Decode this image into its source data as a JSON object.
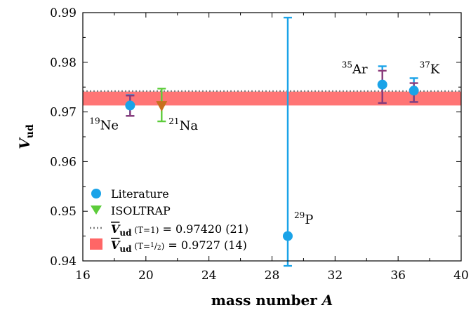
{
  "chart_data": {
    "type": "scatter",
    "xlabel": {
      "main": "mass number",
      "var": "A"
    },
    "ylabel": {
      "main": "V",
      "sub": "ud"
    },
    "xlim": [
      16,
      40
    ],
    "ylim": [
      0.94,
      0.99
    ],
    "xticks": [
      16,
      20,
      24,
      28,
      32,
      36,
      40
    ],
    "yticks": [
      0.94,
      0.95,
      0.96,
      0.97,
      0.98,
      0.99
    ],
    "xtick_labels": [
      "16",
      "20",
      "24",
      "28",
      "32",
      "36",
      "40"
    ],
    "ytick_labels": [
      "0.94",
      "0.95",
      "0.96",
      "0.97",
      "0.98",
      "0.99"
    ],
    "grid": false,
    "legend_position": "bottom-left",
    "colors": {
      "literature": "#1aa3e8",
      "isoltrap": "#5ccc3a",
      "mean_t1": "#7f7f7f",
      "band": "#ff6666",
      "purple_error": "#8b3a7a",
      "orange_marker": "#c8701e"
    },
    "series": [
      {
        "name": "Literature",
        "marker": "circle",
        "points": [
          {
            "x": 19,
            "y": 0.9713,
            "err_low": 0.0021,
            "err_high": 0.0021,
            "alt_err_low": 0.0021,
            "alt_err_high": 0.002,
            "iso_sup": "19",
            "iso_el": "Ne"
          },
          {
            "x": 29,
            "y": 0.945,
            "err_low": 0.006,
            "err_high": 0.044,
            "iso_sup": "29",
            "iso_el": "P"
          },
          {
            "x": 35,
            "y": 0.9755,
            "err_low": 0.0037,
            "err_high": 0.0037,
            "alt_err_low": 0.0037,
            "alt_err_high": 0.0028,
            "iso_sup": "35",
            "iso_el": "Ar"
          },
          {
            "x": 37,
            "y": 0.9743,
            "err_low": 0.0023,
            "err_high": 0.0025,
            "alt_err_low": 0.0023,
            "alt_err_high": 0.0015,
            "iso_sup": "37",
            "iso_el": "K"
          }
        ]
      },
      {
        "name": "ISOLTRAP",
        "marker": "triangle-down",
        "points": [
          {
            "x": 21,
            "y": 0.9712,
            "err_low": 0.0031,
            "err_high": 0.0035,
            "iso_sup": "21",
            "iso_el": "Na"
          }
        ]
      }
    ],
    "reference_lines": [
      {
        "label_prefix": "(T=1) = 0.97420 (21)",
        "value": 0.9742,
        "uncertainty": 0.00021,
        "style": "dotted"
      }
    ],
    "bands": [
      {
        "label_suffix": "(T=1/2) = 0.9727 (14)",
        "value": 0.9727,
        "uncertainty": 0.0014
      }
    ],
    "legend": {
      "literature": "Literature",
      "isoltrap": "ISOLTRAP",
      "mean_t1_symbol": "V",
      "mean_t1_sub": "ud",
      "mean_t1_paren": "(T=1)",
      "mean_t1_value": " = 0.97420 (21)",
      "mean_half_symbol": "V",
      "mean_half_sub": "ud",
      "mean_half_paren_open": "(T=",
      "mean_half_frac_num": "1",
      "mean_half_frac_den": "2",
      "mean_half_paren_close": ")",
      "mean_half_value": " = 0.9727 (14)"
    }
  }
}
